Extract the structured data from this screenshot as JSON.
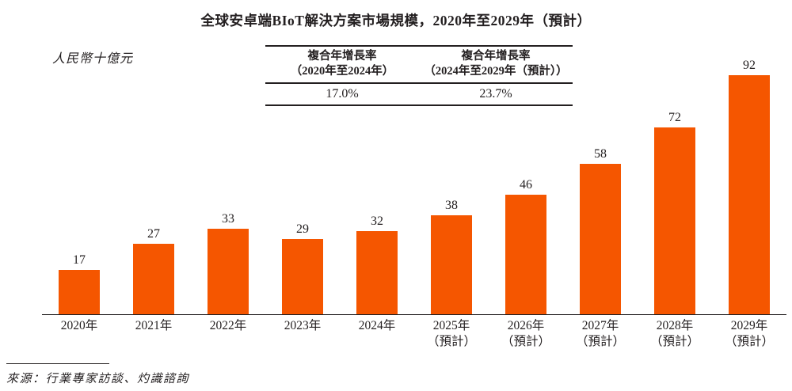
{
  "title": "全球安卓端BIoT解決方案市場規模，2020年至2029年（預計）",
  "unit_label": "人民幣十億元",
  "cagr_table": {
    "columns": [
      {
        "header_line1": "複合年增長率",
        "header_line2": "（2020年至2024年）",
        "value": "17.0%"
      },
      {
        "header_line1": "複合年增長率",
        "header_line2": "（2024年至2029年（預計））",
        "value": "23.7%"
      }
    ]
  },
  "source": "來源：行業專家訪談、灼識諮詢",
  "colors": {
    "bar_orange": "#F55600",
    "text_dark": "#231F20"
  },
  "chart_data": {
    "type": "bar",
    "title": "全球安卓端BIoT解決方案市場規模，2020年至2029年（預計）",
    "ylabel": "人民幣十億元",
    "categories": [
      "2020年",
      "2021年",
      "2022年",
      "2023年",
      "2024年",
      "2025年（預計）",
      "2026年（預計）",
      "2027年（預計）",
      "2028年（預計）",
      "2029年（預計）"
    ],
    "category_lines": [
      [
        "2020年"
      ],
      [
        "2021年"
      ],
      [
        "2022年"
      ],
      [
        "2023年"
      ],
      [
        "2024年"
      ],
      [
        "2025年",
        "（預計）"
      ],
      [
        "2026年",
        "（預計）"
      ],
      [
        "2027年",
        "（預計）"
      ],
      [
        "2028年",
        "（預計）"
      ],
      [
        "2029年",
        "（預計）"
      ]
    ],
    "values": [
      17,
      27,
      33,
      29,
      32,
      38,
      46,
      58,
      72,
      92
    ],
    "ylim": [
      0,
      100
    ],
    "grid": false,
    "legend": null,
    "data_labels": true,
    "annotations": [
      {
        "label": "複合年增長率（2020年至2024年）",
        "value": "17.0%"
      },
      {
        "label": "複合年增長率（2024年至2029年（預計））",
        "value": "23.7%"
      }
    ]
  }
}
